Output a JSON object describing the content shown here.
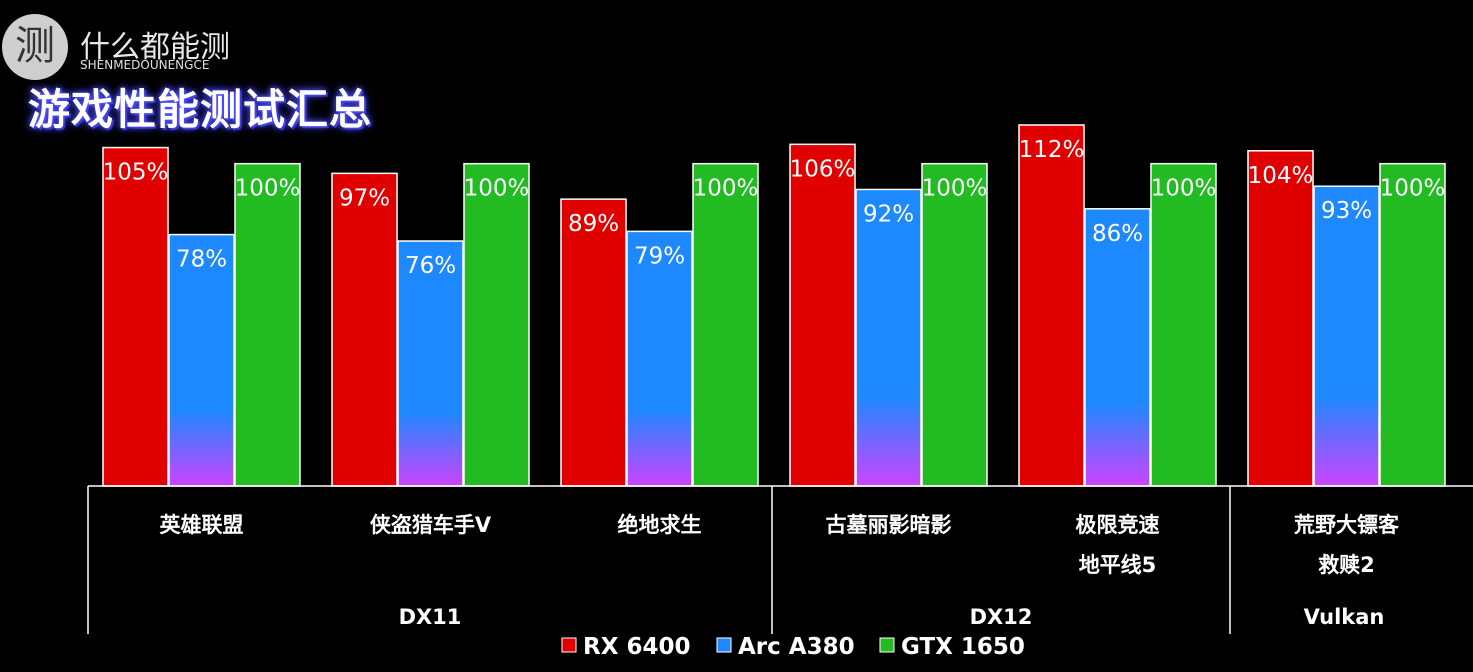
{
  "logo": {
    "glyph": "测",
    "name_cn": "什么都能测",
    "name_en": "SHENMEDOUNENGCE"
  },
  "title": "游戏性能测试汇总",
  "colors": {
    "rx6400": "#e00000",
    "arc_a380": "#1e88ff",
    "gtx1650": "#22bb22",
    "bar_bottom_gradient": "#cc44ff"
  },
  "chart_data": {
    "type": "bar",
    "title": "游戏性能测试汇总",
    "categories": [
      [
        "英雄联盟"
      ],
      [
        "侠盗猎车手V"
      ],
      [
        "绝地求生"
      ],
      [
        "古墓丽影暗影"
      ],
      [
        "极限竞速",
        "地平线5"
      ],
      [
        "荒野大镖客",
        "救赎2"
      ]
    ],
    "groups": [
      {
        "name": "DX11",
        "categories": [
          0,
          1,
          2
        ]
      },
      {
        "name": "DX12",
        "categories": [
          3,
          4
        ]
      },
      {
        "name": "Vulkan",
        "categories": [
          5
        ]
      }
    ],
    "series": [
      {
        "name": "RX 6400",
        "values": [
          105,
          97,
          89,
          106,
          112,
          104
        ],
        "labels": [
          "105%",
          "97%",
          "89%",
          "106%",
          "112%",
          "104%"
        ]
      },
      {
        "name": "Arc A380",
        "values": [
          78,
          76,
          79,
          92,
          86,
          93
        ],
        "labels": [
          "78%",
          "76%",
          "79%",
          "92%",
          "86%",
          "93%"
        ]
      },
      {
        "name": "GTX 1650",
        "values": [
          100,
          100,
          100,
          100,
          100,
          100
        ],
        "labels": [
          "100%",
          "100%",
          "100%",
          "100%",
          "100%",
          "100%"
        ]
      }
    ],
    "ylim": [
      0,
      112
    ],
    "grid": false,
    "legend": "bottom"
  }
}
